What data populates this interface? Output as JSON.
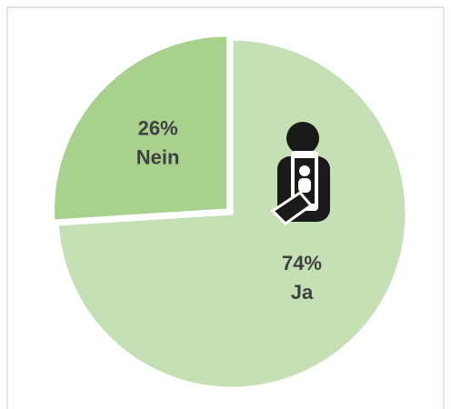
{
  "chart_data": {
    "type": "pie",
    "categories": [
      "Ja",
      "Nein"
    ],
    "values": [
      74,
      26
    ],
    "value_labels": [
      "74%",
      "26%"
    ],
    "colors": [
      "#c5e0b4",
      "#a9d18e"
    ],
    "explode": [
      0,
      1
    ]
  }
}
